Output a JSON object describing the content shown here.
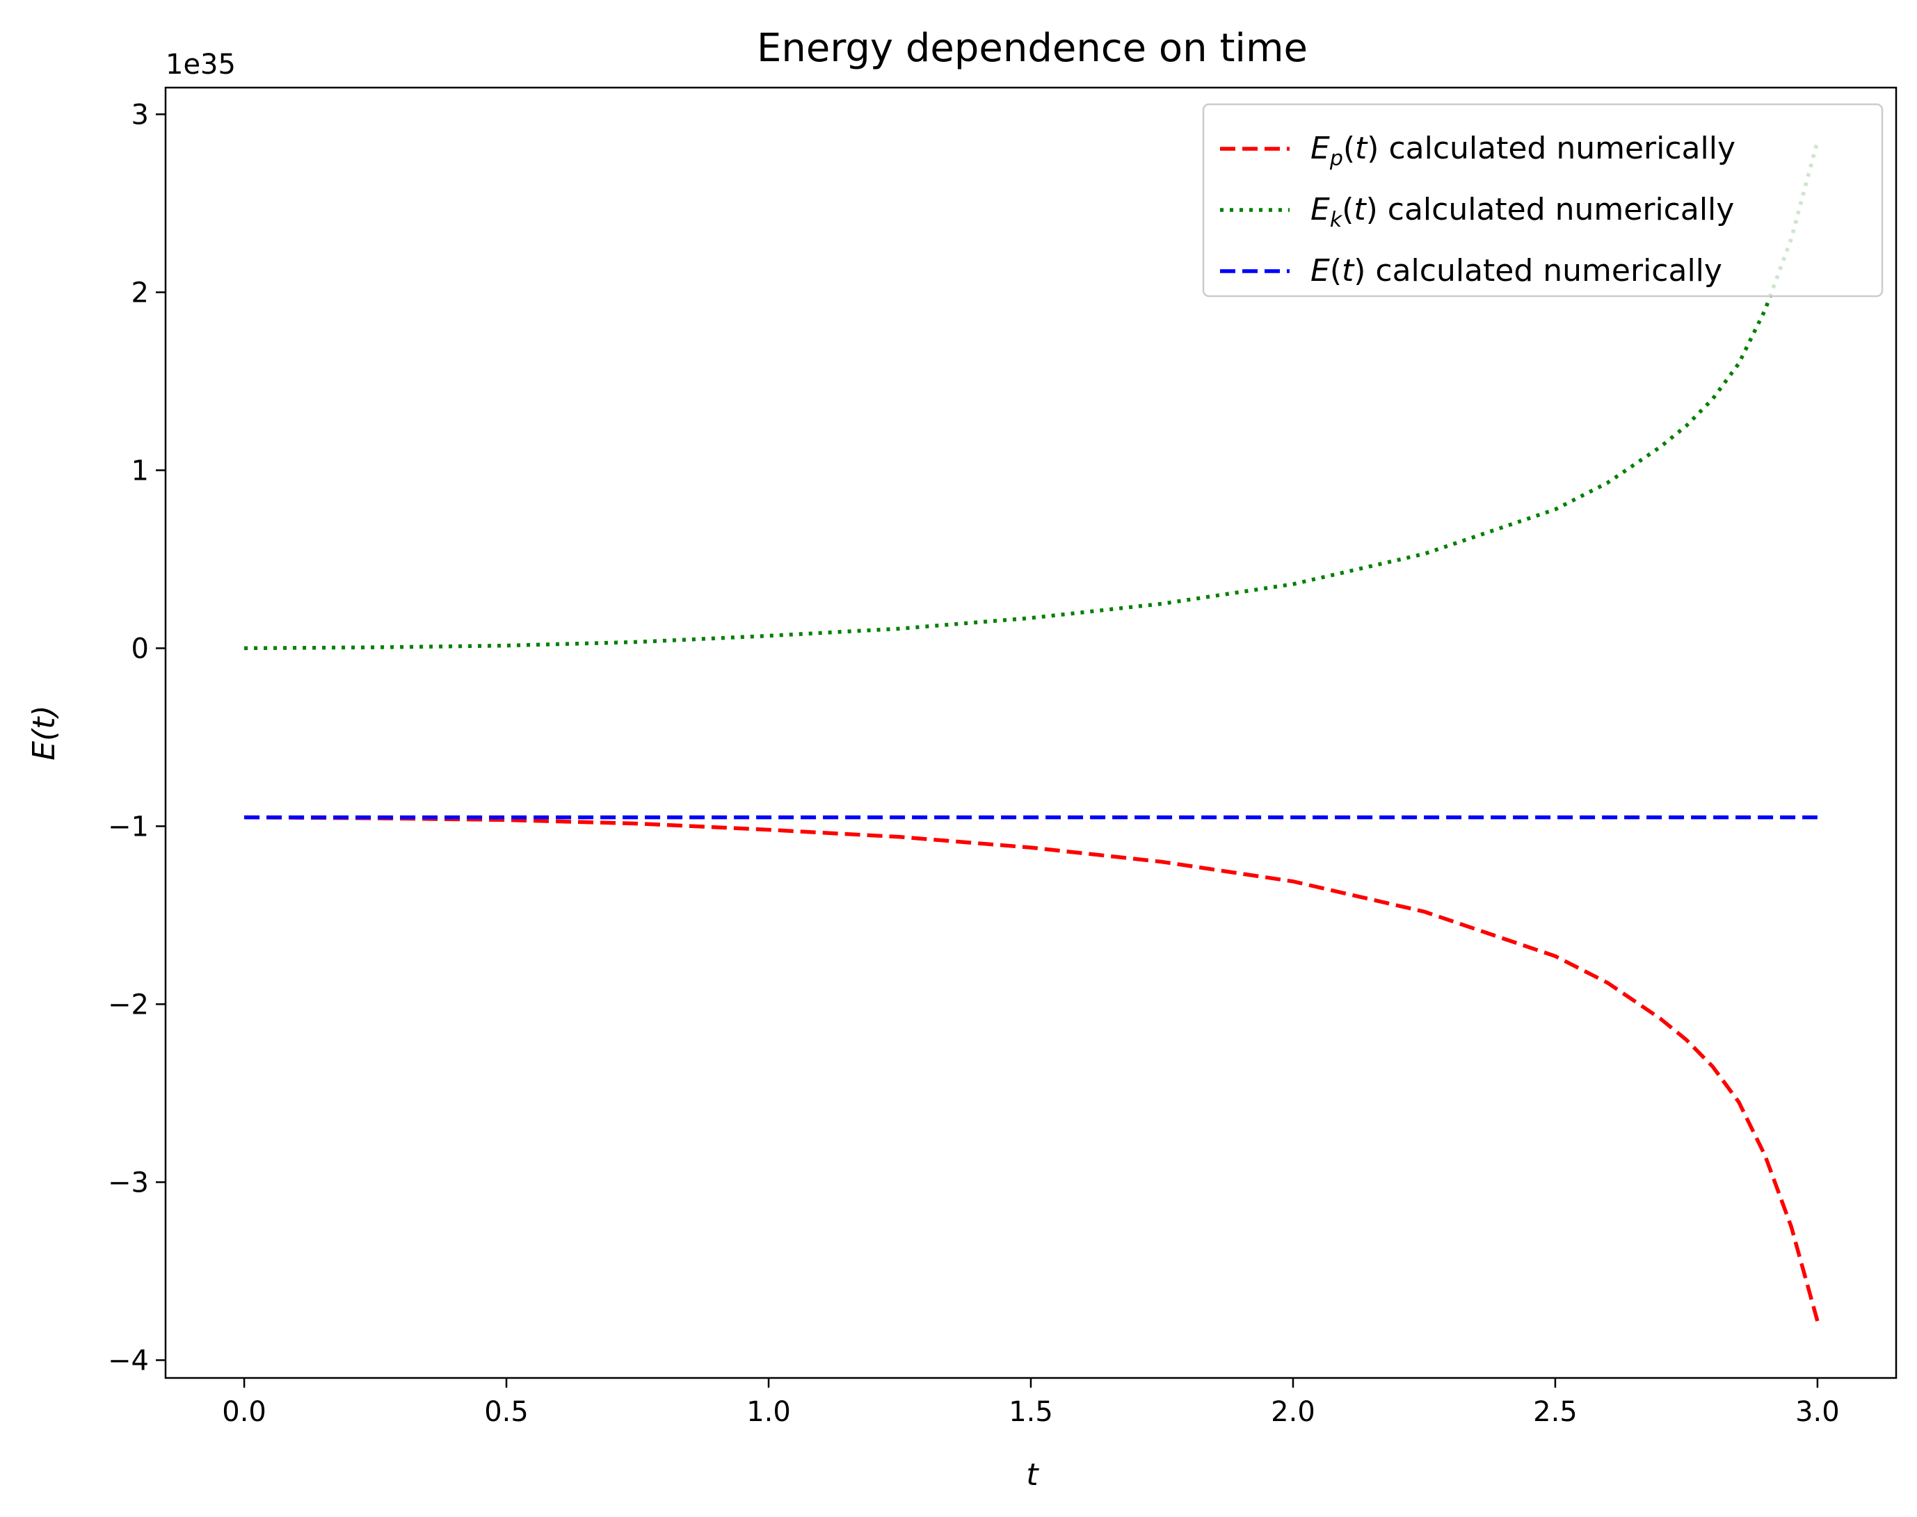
{
  "chart_data": {
    "type": "line",
    "title": "Energy dependence on time",
    "xlabel": "t",
    "ylabel": "E(t)",
    "y_offset_label": "1e35",
    "xlim": [
      -0.15,
      3.15
    ],
    "ylim": [
      -4.1,
      3.15
    ],
    "x_ticks": [
      0.0,
      0.5,
      1.0,
      1.5,
      2.0,
      2.5,
      3.0
    ],
    "x_tick_labels": [
      "0.0",
      "0.5",
      "1.0",
      "1.5",
      "2.0",
      "2.5",
      "3.0"
    ],
    "y_ticks": [
      -4,
      -3,
      -2,
      -1,
      0,
      1,
      2,
      3
    ],
    "y_tick_labels": [
      "−4",
      "−3",
      "−2",
      "−1",
      "0",
      "1",
      "2",
      "3"
    ],
    "grid": false,
    "legend_position": "top-right",
    "x": [
      0.0,
      0.25,
      0.5,
      0.75,
      1.0,
      1.25,
      1.5,
      1.75,
      2.0,
      2.25,
      2.5,
      2.6,
      2.7,
      2.75,
      2.8,
      2.85,
      2.9,
      2.95,
      3.0
    ],
    "series": [
      {
        "name": "E_p(t) calculated numerically",
        "legend_main": "E",
        "legend_sub": "p",
        "legend_rest": "calculated numerically",
        "color": "#ff0000",
        "style": "dashed",
        "values": [
          -0.95,
          -0.955,
          -0.965,
          -0.985,
          -1.02,
          -1.06,
          -1.12,
          -1.2,
          -1.31,
          -1.48,
          -1.73,
          -1.88,
          -2.08,
          -2.2,
          -2.35,
          -2.55,
          -2.85,
          -3.25,
          -3.78
        ]
      },
      {
        "name": "E_k(t) calculated numerically",
        "legend_main": "E",
        "legend_sub": "k",
        "legend_rest": "calculated numerically",
        "color": "#008000",
        "style": "dotted",
        "values": [
          0.0,
          0.005,
          0.015,
          0.035,
          0.07,
          0.11,
          0.17,
          0.25,
          0.36,
          0.53,
          0.78,
          0.93,
          1.13,
          1.25,
          1.4,
          1.6,
          1.9,
          2.3,
          2.85
        ]
      },
      {
        "name": "E(t) calculated numerically",
        "legend_main": "E",
        "legend_sub": "",
        "legend_rest": "calculated numerically",
        "color": "#0000ff",
        "style": "dashed",
        "values": [
          -0.95,
          -0.95,
          -0.95,
          -0.95,
          -0.95,
          -0.95,
          -0.95,
          -0.95,
          -0.95,
          -0.95,
          -0.95,
          -0.95,
          -0.95,
          -0.95,
          -0.95,
          -0.95,
          -0.95,
          -0.95,
          -0.95
        ]
      }
    ]
  }
}
